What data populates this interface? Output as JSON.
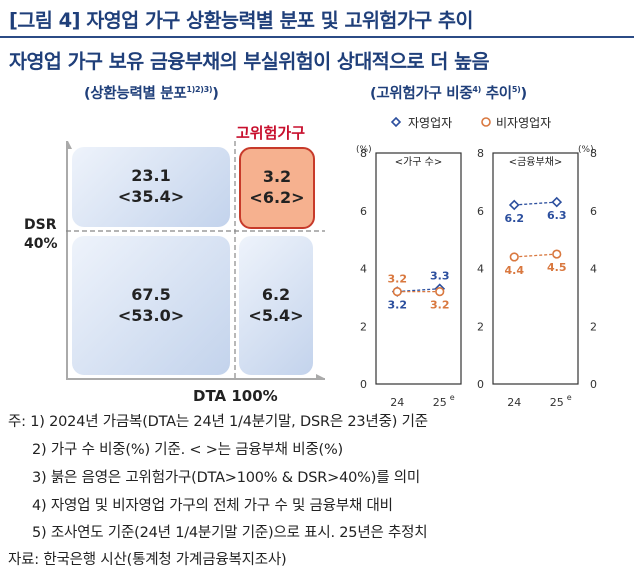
{
  "title": {
    "line1": "[그림 4] 자영업 가구 상환능력별 분포 및 고위험가구 추이",
    "line2": "자영업 가구 보유 금융부채의 부실위험이 상대적으로 더 높음"
  },
  "left_panel": {
    "subtitle": "(상환능력별 분포",
    "subtitle_sup": "1)2)3)",
    "subtitle_close": ")",
    "high_risk_label": "고위험가구",
    "y_axis_label_line1": "DSR",
    "y_axis_label_line2": "40%",
    "x_axis_label": "DTA 100%",
    "cells": {
      "top_left": {
        "value": "23.1",
        "sub": "<35.4>"
      },
      "top_right": {
        "value": "3.2",
        "sub": "<6.2>"
      },
      "bottom_left": {
        "value": "67.5",
        "sub": "<53.0>"
      },
      "bottom_right": {
        "value": "6.2",
        "sub": "<5.4>"
      }
    }
  },
  "right_panel": {
    "subtitle": "(고위험가구 비중",
    "subtitle_sup4": "4)",
    "subtitle_mid": " 추이",
    "subtitle_sup5": "5)",
    "subtitle_close": ")",
    "legend_self": "자영업자",
    "legend_nonself": "비자영업자",
    "unit_left": "(%)",
    "unit_right": "(%)",
    "panel1_title": "<가구 수>",
    "panel2_title": "<금융부채>",
    "x_ticks": [
      "24",
      "25"
    ],
    "x_tick_sup": "e",
    "y_ticks": [
      "0",
      "2",
      "4",
      "6",
      "8"
    ]
  },
  "chart_data": [
    {
      "type": "table",
      "title": "",
      "columns": [
        "DTA ≤ 100%",
        "DTA > 100%"
      ],
      "rows": [
        "DSR > 40%",
        "DSR ≤ 40%"
      ],
      "values": [
        [
          23.1,
          3.2
        ],
        [
          67.5,
          6.2
        ]
      ],
      "debt_share_values": [
        [
          35.4,
          6.2
        ],
        [
          53.0,
          5.4
        ]
      ]
    },
    {
      "type": "line",
      "title": "<가구 수>",
      "x": [
        "24",
        "25e"
      ],
      "ylim": [
        0,
        8
      ],
      "series": [
        {
          "name": "자영업자",
          "values": [
            3.2,
            3.3
          ],
          "labels": [
            "3.2",
            "3.3"
          ],
          "color": "#2c4f9e"
        },
        {
          "name": "비자영업자",
          "values": [
            3.2,
            3.2
          ],
          "labels": [
            "3.2",
            "3.2"
          ],
          "color": "#d9783f"
        }
      ]
    },
    {
      "type": "line",
      "title": "<금융부채>",
      "x": [
        "24",
        "25e"
      ],
      "ylim": [
        0,
        8
      ],
      "series": [
        {
          "name": "자영업자",
          "values": [
            6.2,
            6.3
          ],
          "labels": [
            "6.2",
            "6.3"
          ],
          "color": "#2c4f9e"
        },
        {
          "name": "비자영업자",
          "values": [
            4.4,
            4.5
          ],
          "labels": [
            "4.4",
            "4.5"
          ],
          "color": "#d9783f"
        }
      ]
    }
  ],
  "notes": [
    "주: 1) 2024년 가금복(DTA는 24년 1/4분기말, DSR은 23년중) 기준",
    "2) 가구 수 비중(%) 기준. <    >는 금융부채 비중(%)",
    "3) 붉은 음영은 고위험가구(DTA>100% & DSR>40%)를 의미",
    "4) 자영업 및 비자영업 가구의 전체 가구 수 및 금융부채 대비",
    "5) 조사연도 기준(24년 1/4분기말 기준)으로 표시. 25년은 추정치"
  ],
  "source": "자료: 한국은행 시산(통계청 가계금융복지조사)"
}
